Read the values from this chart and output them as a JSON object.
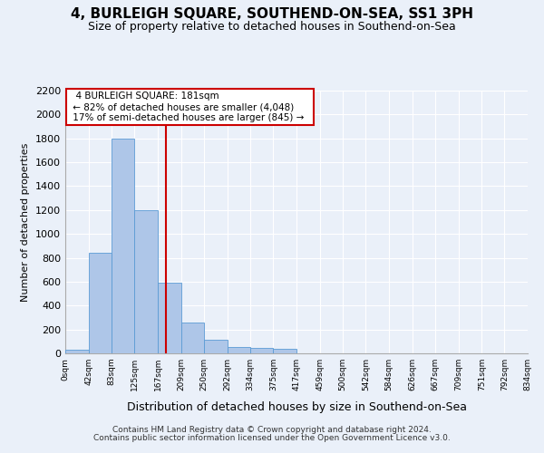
{
  "title": "4, BURLEIGH SQUARE, SOUTHEND-ON-SEA, SS1 3PH",
  "subtitle": "Size of property relative to detached houses in Southend-on-Sea",
  "xlabel": "Distribution of detached houses by size in Southend-on-Sea",
  "ylabel": "Number of detached properties",
  "footer_line1": "Contains HM Land Registry data © Crown copyright and database right 2024.",
  "footer_line2": "Contains public sector information licensed under the Open Government Licence v3.0.",
  "annotation_title": "4 BURLEIGH SQUARE: 181sqm",
  "annotation_line1": "← 82% of detached houses are smaller (4,048)",
  "annotation_line2": "17% of semi-detached houses are larger (845) →",
  "property_size": 181,
  "bar_edges": [
    0,
    42,
    83,
    125,
    167,
    209,
    250,
    292,
    334,
    375,
    417,
    459,
    500,
    542,
    584,
    626,
    667,
    709,
    751,
    792,
    834
  ],
  "bar_heights": [
    30,
    840,
    1800,
    1200,
    590,
    260,
    115,
    50,
    48,
    35,
    0,
    0,
    0,
    0,
    0,
    0,
    0,
    0,
    0,
    0
  ],
  "bar_color": "#aec6e8",
  "bar_edge_color": "#5b9bd5",
  "vline_x": 181,
  "vline_color": "#cc0000",
  "ylim": [
    0,
    2200
  ],
  "yticks": [
    0,
    200,
    400,
    600,
    800,
    1000,
    1200,
    1400,
    1600,
    1800,
    2000,
    2200
  ],
  "bg_color": "#eaf0f9",
  "plot_bg_color": "#eaf0f9",
  "grid_color": "#ffffff",
  "annotation_box_color": "#cc0000",
  "title_fontsize": 11,
  "subtitle_fontsize": 9,
  "tick_label_fontsize": 6.5,
  "ylabel_fontsize": 8,
  "xlabel_fontsize": 9
}
